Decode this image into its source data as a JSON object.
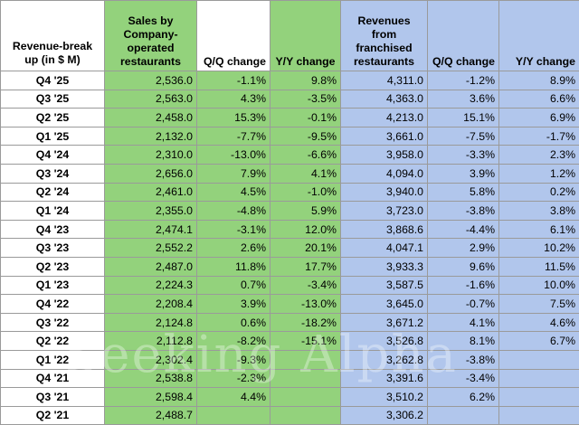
{
  "headers": {
    "period": "Revenue-break up (in $ M)",
    "company_sales": "Sales by Company-operated restaurants",
    "company_qq": "Q/Q change",
    "company_yy": "Y/Y change",
    "franchise_rev": "Revenues from franchised restaurants",
    "franchise_qq": "Q/Q change",
    "franchise_yy": "Y/Y change"
  },
  "rows": [
    {
      "period": "Q4 '25",
      "sales": "2,536.0",
      "sales_qq": "-1.1%",
      "sales_yy": "9.8%",
      "fran": "4,311.0",
      "fran_qq": "-1.2%",
      "fran_yy": "8.9%"
    },
    {
      "period": "Q3 '25",
      "sales": "2,563.0",
      "sales_qq": "4.3%",
      "sales_yy": "-3.5%",
      "fran": "4,363.0",
      "fran_qq": "3.6%",
      "fran_yy": "6.6%"
    },
    {
      "period": "Q2 '25",
      "sales": "2,458.0",
      "sales_qq": "15.3%",
      "sales_yy": "-0.1%",
      "fran": "4,213.0",
      "fran_qq": "15.1%",
      "fran_yy": "6.9%"
    },
    {
      "period": "Q1 '25",
      "sales": "2,132.0",
      "sales_qq": "-7.7%",
      "sales_yy": "-9.5%",
      "fran": "3,661.0",
      "fran_qq": "-7.5%",
      "fran_yy": "-1.7%"
    },
    {
      "period": "Q4 '24",
      "sales": "2,310.0",
      "sales_qq": "-13.0%",
      "sales_yy": "-6.6%",
      "fran": "3,958.0",
      "fran_qq": "-3.3%",
      "fran_yy": "2.3%"
    },
    {
      "period": "Q3 '24",
      "sales": "2,656.0",
      "sales_qq": "7.9%",
      "sales_yy": "4.1%",
      "fran": "4,094.0",
      "fran_qq": "3.9%",
      "fran_yy": "1.2%"
    },
    {
      "period": "Q2 '24",
      "sales": "2,461.0",
      "sales_qq": "4.5%",
      "sales_yy": "-1.0%",
      "fran": "3,940.0",
      "fran_qq": "5.8%",
      "fran_yy": "0.2%"
    },
    {
      "period": "Q1 '24",
      "sales": "2,355.0",
      "sales_qq": "-4.8%",
      "sales_yy": "5.9%",
      "fran": "3,723.0",
      "fran_qq": "-3.8%",
      "fran_yy": "3.8%"
    },
    {
      "period": "Q4 '23",
      "sales": "2,474.1",
      "sales_qq": "-3.1%",
      "sales_yy": "12.0%",
      "fran": "3,868.6",
      "fran_qq": "-4.4%",
      "fran_yy": "6.1%"
    },
    {
      "period": "Q3 '23",
      "sales": "2,552.2",
      "sales_qq": "2.6%",
      "sales_yy": "20.1%",
      "fran": "4,047.1",
      "fran_qq": "2.9%",
      "fran_yy": "10.2%"
    },
    {
      "period": "Q2 '23",
      "sales": "2,487.0",
      "sales_qq": "11.8%",
      "sales_yy": "17.7%",
      "fran": "3,933.3",
      "fran_qq": "9.6%",
      "fran_yy": "11.5%"
    },
    {
      "period": "Q1 '23",
      "sales": "2,224.3",
      "sales_qq": "0.7%",
      "sales_yy": "-3.4%",
      "fran": "3,587.5",
      "fran_qq": "-1.6%",
      "fran_yy": "10.0%"
    },
    {
      "period": "Q4 '22",
      "sales": "2,208.4",
      "sales_qq": "3.9%",
      "sales_yy": "-13.0%",
      "fran": "3,645.0",
      "fran_qq": "-0.7%",
      "fran_yy": "7.5%"
    },
    {
      "period": "Q3 '22",
      "sales": "2,124.8",
      "sales_qq": "0.6%",
      "sales_yy": "-18.2%",
      "fran": "3,671.2",
      "fran_qq": "4.1%",
      "fran_yy": "4.6%"
    },
    {
      "period": "Q2 '22",
      "sales": "2,112.8",
      "sales_qq": "-8.2%",
      "sales_yy": "-15.1%",
      "fran": "3,526.8",
      "fran_qq": "8.1%",
      "fran_yy": "6.7%"
    },
    {
      "period": "Q1 '22",
      "sales": "2,302.4",
      "sales_qq": "-9.3%",
      "sales_yy": "",
      "fran": "3,262.8",
      "fran_qq": "-3.8%",
      "fran_yy": ""
    },
    {
      "period": "Q4 '21",
      "sales": "2,538.8",
      "sales_qq": "-2.3%",
      "sales_yy": "",
      "fran": "3,391.6",
      "fran_qq": "-3.4%",
      "fran_yy": ""
    },
    {
      "period": "Q3 '21",
      "sales": "2,598.4",
      "sales_qq": "4.4%",
      "sales_yy": "",
      "fran": "3,510.2",
      "fran_qq": "6.2%",
      "fran_yy": ""
    },
    {
      "period": "Q2 '21",
      "sales": "2,488.7",
      "sales_qq": "",
      "sales_yy": "",
      "fran": "3,306.2",
      "fran_qq": "",
      "fran_yy": ""
    }
  ],
  "watermark": "Seeking Alpha",
  "colors": {
    "company_fill": "#93d27c",
    "franchise_fill": "#b1c6ec",
    "grid_line": "#9a9a9a"
  }
}
